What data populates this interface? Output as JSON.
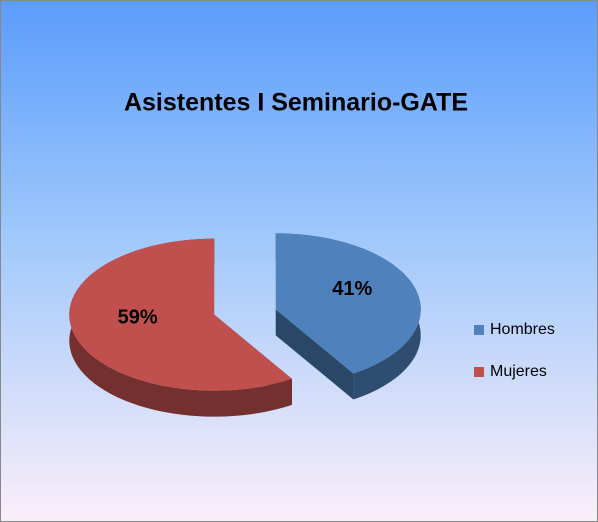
{
  "chart_data": {
    "type": "pie",
    "title": "Asistentes I Seminario-GATE",
    "categories": [
      "Hombres",
      "Mujeres"
    ],
    "values": [
      41,
      59
    ],
    "value_labels": [
      "41%",
      "59%"
    ],
    "colors": [
      "#4f81bd",
      "#c0504d"
    ],
    "legend": "right"
  }
}
